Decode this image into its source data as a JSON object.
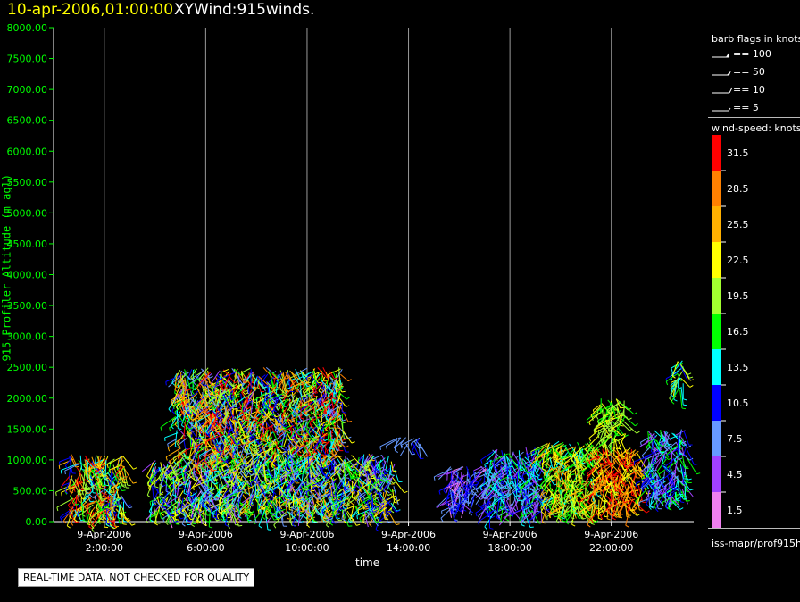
{
  "header": {
    "datetime": "10-apr-2006,01:00:00",
    "title": "XYWind:915winds."
  },
  "chart_data": {
    "type": "scatter",
    "subtype": "wind-barbs",
    "xlabel": "time",
    "ylabel": "915 Profiler Altitude (m agl)",
    "ylim": [
      0,
      8000
    ],
    "yticks": [
      "0.00",
      "500.00",
      "1000.00",
      "1500.00",
      "2000.00",
      "2500.00",
      "3000.00",
      "3500.00",
      "4000.00",
      "4500.00",
      "5000.00",
      "5500.00",
      "6000.00",
      "6500.00",
      "7000.00",
      "7500.00",
      "8000.00"
    ],
    "xlim_hours": [
      0,
      25.25
    ],
    "xticks": [
      {
        "hour": 2,
        "date": "9-Apr-2006",
        "time": "2:00:00"
      },
      {
        "hour": 6,
        "date": "9-Apr-2006",
        "time": "6:00:00"
      },
      {
        "hour": 10,
        "date": "9-Apr-2006",
        "time": "10:00:00"
      },
      {
        "hour": 14,
        "date": "9-Apr-2006",
        "time": "14:00:00"
      },
      {
        "hour": 18,
        "date": "9-Apr-2006",
        "time": "18:00:00"
      },
      {
        "hour": 22,
        "date": "9-Apr-2006",
        "time": "22:00:00"
      }
    ],
    "grid": "vertical-at-ticks",
    "clusters": [
      {
        "hours": [
          0.6,
          2.8
        ],
        "alt": [
          100,
          1100
        ],
        "speed": [
          8,
          33
        ]
      },
      {
        "hours": [
          3.9,
          7.2
        ],
        "alt": [
          150,
          1000
        ],
        "speed": [
          2,
          24
        ]
      },
      {
        "hours": [
          4.8,
          11.4
        ],
        "alt": [
          1000,
          2500
        ],
        "speed": [
          5,
          33
        ]
      },
      {
        "hours": [
          7.2,
          13.5
        ],
        "alt": [
          150,
          1100
        ],
        "speed": [
          4,
          26
        ]
      },
      {
        "hours": [
          13.5,
          14.5
        ],
        "alt": [
          1250,
          1400
        ],
        "speed": [
          6,
          10
        ]
      },
      {
        "hours": [
          15.5,
          17.2
        ],
        "alt": [
          250,
          900
        ],
        "speed": [
          2,
          12
        ]
      },
      {
        "hours": [
          17.2,
          19.3
        ],
        "alt": [
          150,
          1200
        ],
        "speed": [
          3,
          16
        ]
      },
      {
        "hours": [
          19.3,
          21.3
        ],
        "alt": [
          150,
          1300
        ],
        "speed": [
          14,
          27
        ]
      },
      {
        "hours": [
          21.3,
          23.2
        ],
        "alt": [
          200,
          1200
        ],
        "speed": [
          20,
          33
        ]
      },
      {
        "hours": [
          21.5,
          22.6
        ],
        "alt": [
          1300,
          2000
        ],
        "speed": [
          17,
          24
        ]
      },
      {
        "hours": [
          23.4,
          25.0
        ],
        "alt": [
          400,
          1500
        ],
        "speed": [
          3,
          18
        ]
      },
      {
        "hours": [
          24.5,
          24.9
        ],
        "alt": [
          2100,
          2700
        ],
        "speed": [
          10,
          24
        ]
      }
    ]
  },
  "legend": {
    "barb_title": "barb flags in knots",
    "barb_flags": [
      "== 100",
      "== 50",
      "== 10",
      "== 5"
    ],
    "speed_title": "wind-speed: knots",
    "speed_levels": [
      {
        "label": "31.5",
        "color": "#ff0000"
      },
      {
        "label": "28.5",
        "color": "#ff8000"
      },
      {
        "label": "25.5",
        "color": "#ffb000"
      },
      {
        "label": "22.5",
        "color": "#ffff00"
      },
      {
        "label": "19.5",
        "color": "#a0ff30"
      },
      {
        "label": "16.5",
        "color": "#00ff00"
      },
      {
        "label": "13.5",
        "color": "#00ffff"
      },
      {
        "label": "10.5",
        "color": "#0000ff"
      },
      {
        "label": "7.5",
        "color": "#6699ff"
      },
      {
        "label": "4.5",
        "color": "#a040ff"
      },
      {
        "label": "1.5",
        "color": "#f080f0"
      }
    ],
    "source": "iss-mapr/prof915h"
  },
  "footer": {
    "note": "REAL-TIME DATA, NOT CHECKED FOR QUALITY"
  }
}
